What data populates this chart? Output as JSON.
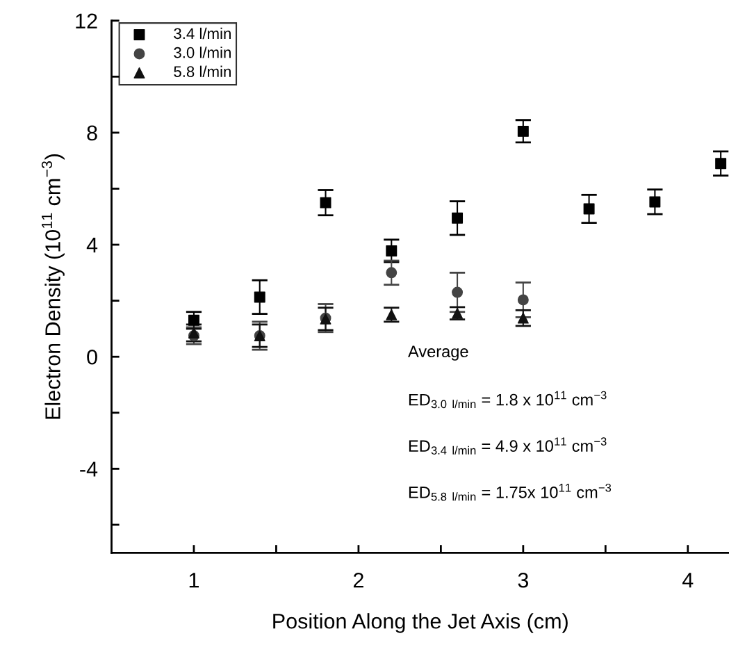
{
  "chart_data": {
    "type": "scatter",
    "xlabel": "Position Along the Jet Axis (cm)",
    "ylabel": "Electron Density (10$^{11}$ cm$^{−3}$)",
    "xlim": [
      0.5,
      4.25
    ],
    "xticks": [
      1,
      {
        "value": 1.5,
        "label": null
      },
      2,
      {
        "value": 2.5,
        "label": null
      },
      3,
      {
        "value": 3.5,
        "label": null
      },
      4
    ],
    "ylim": [
      -7,
      12
    ],
    "yticks": [
      {
        "value": -6,
        "label": null
      },
      -4,
      {
        "value": -2,
        "label": null
      },
      0,
      {
        "value": 2,
        "label": null
      },
      4,
      {
        "value": 6,
        "label": null
      },
      8,
      {
        "value": 10,
        "label": null
      },
      12
    ],
    "grid": false,
    "legend": "top left",
    "series": [
      {
        "name": "3.4 l/min",
        "color": "#000000",
        "marker": "square",
        "x": [
          1.0,
          1.4,
          1.8,
          2.2,
          2.6,
          3.0,
          3.4,
          3.8,
          4.2
        ],
        "values": [
          1.3,
          2.13,
          5.5,
          3.78,
          4.95,
          8.05,
          5.28,
          5.53,
          6.9
        ],
        "errors": [
          0.3,
          0.6,
          0.45,
          0.4,
          0.6,
          0.4,
          0.5,
          0.44,
          0.43
        ]
      },
      {
        "name": "3.0 l/min",
        "color": "#444444",
        "marker": "circle",
        "x": [
          1.0,
          1.4,
          1.8,
          2.2,
          2.6,
          3.0
        ],
        "values": [
          0.75,
          0.75,
          1.38,
          3.0,
          2.3,
          2.03
        ],
        "errors": [
          0.3,
          0.5,
          0.5,
          0.43,
          0.7,
          0.62
        ]
      },
      {
        "name": "5.8 l/min",
        "color": "#111111",
        "marker": "triangle",
        "x": [
          1.0,
          1.4,
          1.8,
          2.2,
          2.6,
          3.0
        ],
        "values": [
          0.85,
          0.75,
          1.35,
          1.5,
          1.55,
          1.38
        ],
        "errors": [
          0.3,
          0.4,
          0.4,
          0.25,
          0.22,
          0.28
        ]
      }
    ],
    "annotations": [
      "Average",
      "ED$_{3.0 l/min}$ = 1.8 x 10$^{11}$ cm$^{−3}$",
      "ED$_{3.4 l/min}$ = 4.9 x 10$^{11}$ cm$^{−3}$",
      "ED$_{5.8 l/min}$ = 1.75x 10$^{11}$ cm$^{−3}$"
    ]
  }
}
